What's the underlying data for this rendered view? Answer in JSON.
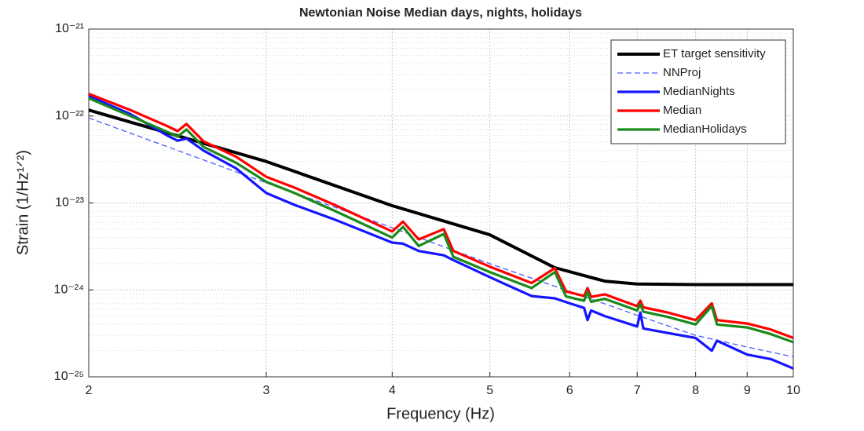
{
  "chart_data": {
    "type": "line",
    "title": "Newtonian Noise Median days, nights, holidays",
    "x_label": "Frequency (Hz)",
    "y_label": "Strain (1/Hz¹ᐟ²)",
    "xscale": "log",
    "yscale": "log",
    "xlim": [
      2,
      10
    ],
    "ylim": [
      1e-25,
      1e-21
    ],
    "xticks": [
      2,
      3,
      4,
      5,
      6,
      7,
      8,
      9,
      10
    ],
    "yticks": [
      {
        "value": 1e-25,
        "label": "10⁻²⁵"
      },
      {
        "value": 1e-24,
        "label": "10⁻²⁴"
      },
      {
        "value": 1e-23,
        "label": "10⁻²³"
      },
      {
        "value": 1e-22,
        "label": "10⁻²²"
      },
      {
        "value": 1e-21,
        "label": "10⁻²¹"
      }
    ],
    "grid": true,
    "legend": "upper right",
    "series": [
      {
        "name": "ET target sensitivity",
        "color": "#000000",
        "style": "solid",
        "x": [
          2.0,
          3.0,
          4.0,
          5.0,
          5.8,
          6.5,
          7.0,
          8.0,
          9.0,
          10.0
        ],
        "values": [
          1.17e-22,
          3e-23,
          9.3e-24,
          4.3e-24,
          1.8e-24,
          1.26e-24,
          1.17e-24,
          1.15e-24,
          1.15e-24,
          1.15e-24
        ]
      },
      {
        "name": "NNProj",
        "color": "#4a5cff",
        "style": "dashed",
        "x": [
          2,
          3,
          4,
          5,
          6,
          7,
          8,
          9,
          10
        ],
        "values": [
          9.5e-23,
          1.7e-23,
          5.2e-24,
          2e-24,
          9.6e-25,
          5.1e-25,
          3e-25,
          2.2e-25,
          1.7e-25
        ]
      },
      {
        "name": "MedianNights",
        "color": "#1515ff",
        "style": "solid",
        "x": [
          2.0,
          2.2,
          2.39,
          2.45,
          2.5,
          2.6,
          2.8,
          3.0,
          3.2,
          3.5,
          4.0,
          4.1,
          4.25,
          4.5,
          4.6,
          5.0,
          5.5,
          5.8,
          6.0,
          6.2,
          6.25,
          6.3,
          6.5,
          7.0,
          7.05,
          7.1,
          7.5,
          8.0,
          8.3,
          8.4,
          9.0,
          9.5,
          10.0
        ],
        "values": [
          1.7e-22,
          1.05e-22,
          6e-23,
          5.2e-23,
          5.5e-23,
          4e-23,
          2.5e-23,
          1.3e-23,
          9.5e-24,
          6.5e-24,
          3.5e-24,
          3.4e-24,
          2.8e-24,
          2.5e-24,
          2.2e-24,
          1.4e-24,
          8.5e-25,
          8e-25,
          7e-25,
          6.2e-25,
          4.5e-25,
          5.8e-25,
          5e-25,
          3.8e-25,
          5.5e-25,
          3.6e-25,
          3.2e-25,
          2.8e-25,
          2e-25,
          2.6e-25,
          1.8e-25,
          1.6e-25,
          1.25e-25
        ]
      },
      {
        "name": "Median",
        "color": "#ff0000",
        "style": "solid",
        "x": [
          2.0,
          2.2,
          2.39,
          2.45,
          2.5,
          2.6,
          2.8,
          3.0,
          3.2,
          3.5,
          4.0,
          4.1,
          4.25,
          4.5,
          4.6,
          5.0,
          5.5,
          5.8,
          5.95,
          6.2,
          6.25,
          6.3,
          6.5,
          7.0,
          7.05,
          7.1,
          7.5,
          8.0,
          8.3,
          8.4,
          9.0,
          9.5,
          10.0
        ],
        "values": [
          1.8e-22,
          1.17e-22,
          7.7e-23,
          6.7e-23,
          8.1e-23,
          5.1e-23,
          3.4e-23,
          2e-23,
          1.5e-23,
          9.6e-24,
          4.7e-24,
          6.1e-24,
          3.8e-24,
          5e-24,
          2.8e-24,
          1.85e-24,
          1.2e-24,
          1.78e-24,
          9.6e-25,
          8.5e-25,
          1.05e-24,
          8.3e-25,
          8.9e-25,
          6.5e-25,
          7.5e-25,
          6.3e-25,
          5.5e-25,
          4.5e-25,
          7e-25,
          4.5e-25,
          4.1e-25,
          3.5e-25,
          2.8e-25
        ]
      },
      {
        "name": "MedianHolidays",
        "color": "#1a8a1a",
        "style": "solid",
        "x": [
          2.0,
          2.2,
          2.39,
          2.45,
          2.5,
          2.6,
          2.8,
          3.0,
          3.2,
          3.5,
          4.0,
          4.1,
          4.25,
          4.5,
          4.6,
          5.0,
          5.5,
          5.8,
          5.95,
          6.2,
          6.25,
          6.3,
          6.5,
          7.0,
          7.05,
          7.1,
          7.5,
          8.0,
          8.3,
          8.4,
          9.0,
          9.5,
          10.0
        ],
        "values": [
          1.6e-22,
          1e-22,
          6.6e-23,
          5.8e-23,
          7e-23,
          4.4e-23,
          2.9e-23,
          1.75e-23,
          1.3e-23,
          8.2e-24,
          4e-24,
          5.3e-24,
          3.2e-24,
          4.4e-24,
          2.4e-24,
          1.6e-24,
          1.05e-24,
          1.6e-24,
          8.4e-25,
          7.5e-25,
          9.5e-25,
          7.3e-25,
          7.9e-25,
          5.8e-25,
          6.8e-25,
          5.6e-25,
          4.9e-25,
          4e-25,
          6.5e-25,
          4e-25,
          3.7e-25,
          3.1e-25,
          2.5e-25
        ]
      }
    ]
  }
}
